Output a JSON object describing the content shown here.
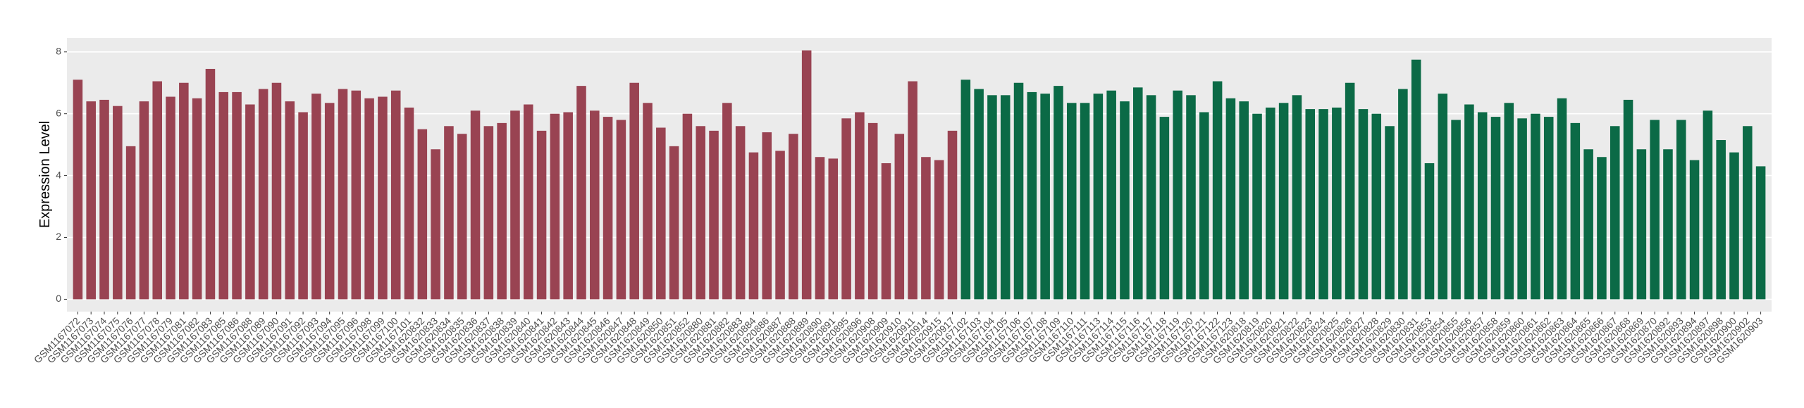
{
  "chart_data": {
    "type": "bar",
    "y_label": "Expression Level",
    "ylim": [
      -0.4,
      8.45
    ],
    "yticks": [
      0,
      2,
      4,
      6,
      8
    ],
    "grid": true,
    "series": [
      {
        "color": "#994352",
        "categories": [
          "GSM1167072",
          "GSM1167073",
          "GSM1167074",
          "GSM1167075",
          "GSM1167076",
          "GSM1167077",
          "GSM1167078",
          "GSM1167079",
          "GSM1167081",
          "GSM1167082",
          "GSM1167083",
          "GSM1167085",
          "GSM1167086",
          "GSM1167088",
          "GSM1167089",
          "GSM1167090",
          "GSM1167091",
          "GSM1167092",
          "GSM1167093",
          "GSM1167094",
          "GSM1167095",
          "GSM1167096",
          "GSM1167098",
          "GSM1167099",
          "GSM1167100",
          "GSM1167101",
          "GSM1620832",
          "GSM1620833",
          "GSM1620834",
          "GSM1620835",
          "GSM1620836",
          "GSM1620837",
          "GSM1620838",
          "GSM1620839",
          "GSM1620840",
          "GSM1620841",
          "GSM1620842",
          "GSM1620843",
          "GSM1620844",
          "GSM1620845",
          "GSM1620846",
          "GSM1620847",
          "GSM1620848",
          "GSM1620849",
          "GSM1620850",
          "GSM1620851",
          "GSM1620852",
          "GSM1620880",
          "GSM1620881",
          "GSM1620882",
          "GSM1620883",
          "GSM1620884",
          "GSM1620886",
          "GSM1620887",
          "GSM1620888",
          "GSM1620889",
          "GSM1620890",
          "GSM1620891",
          "GSM1620895",
          "GSM1620896",
          "GSM1620908",
          "GSM1620909",
          "GSM1620910",
          "GSM1620911",
          "GSM1620914",
          "GSM1620915",
          "GSM1620917"
        ],
        "values": [
          7.1,
          6.4,
          6.45,
          6.25,
          4.95,
          6.4,
          7.05,
          6.55,
          7.0,
          6.5,
          7.45,
          6.7,
          6.7,
          6.3,
          6.8,
          7.0,
          6.4,
          6.05,
          6.65,
          6.35,
          6.8,
          6.75,
          6.5,
          6.55,
          6.75,
          6.2,
          5.5,
          4.85,
          5.6,
          5.35,
          6.1,
          5.6,
          5.7,
          6.1,
          6.3,
          5.45,
          6.0,
          6.05,
          6.9,
          6.1,
          5.9,
          5.8,
          7.0,
          6.35,
          5.55,
          4.95,
          6.0,
          5.6,
          5.45,
          6.35,
          5.6,
          4.75,
          5.4,
          4.8,
          5.35,
          8.05,
          4.6,
          4.55,
          5.85,
          6.05,
          5.7,
          4.4,
          5.35,
          7.05,
          4.6,
          4.5,
          5.45
        ]
      },
      {
        "color": "#0b6a46",
        "categories": [
          "GSM1167102",
          "GSM1167103",
          "GSM1167104",
          "GSM1167105",
          "GSM1167106",
          "GSM1167107",
          "GSM1167108",
          "GSM1167109",
          "GSM1167110",
          "GSM1167111",
          "GSM1167113",
          "GSM1167114",
          "GSM1167115",
          "GSM1167116",
          "GSM1167117",
          "GSM1167118",
          "GSM1167119",
          "GSM1167120",
          "GSM1167121",
          "GSM1167122",
          "GSM1167123",
          "GSM1620818",
          "GSM1620819",
          "GSM1620820",
          "GSM1620821",
          "GSM1620822",
          "GSM1620823",
          "GSM1620824",
          "GSM1620825",
          "GSM1620826",
          "GSM1620827",
          "GSM1620828",
          "GSM1620829",
          "GSM1620830",
          "GSM1620831",
          "GSM1620853",
          "GSM1620854",
          "GSM1620855",
          "GSM1620856",
          "GSM1620857",
          "GSM1620858",
          "GSM1620859",
          "GSM1620860",
          "GSM1620861",
          "GSM1620862",
          "GSM1620863",
          "GSM1620864",
          "GSM1620865",
          "GSM1620866",
          "GSM1620867",
          "GSM1620868",
          "GSM1620869",
          "GSM1620870",
          "GSM1620892",
          "GSM1620893",
          "GSM1620894",
          "GSM1620897",
          "GSM1620898",
          "GSM1620900",
          "GSM1620902",
          "GSM1620903"
        ],
        "values": [
          7.1,
          6.8,
          6.6,
          6.6,
          7.0,
          6.7,
          6.65,
          6.9,
          6.35,
          6.35,
          6.65,
          6.75,
          6.4,
          6.85,
          6.6,
          5.9,
          6.75,
          6.6,
          6.05,
          7.05,
          6.5,
          6.4,
          6.0,
          6.2,
          6.35,
          6.6,
          6.15,
          6.15,
          6.2,
          7.0,
          6.15,
          6.0,
          5.6,
          6.8,
          7.75,
          4.4,
          6.65,
          5.8,
          6.3,
          6.05,
          5.9,
          6.35,
          5.85,
          6.0,
          5.9,
          6.5,
          5.7,
          4.85,
          4.6,
          5.6,
          6.45,
          4.85,
          5.8,
          4.85,
          5.8,
          4.5,
          6.1,
          5.15,
          4.75,
          5.6,
          4.3
        ]
      }
    ]
  }
}
